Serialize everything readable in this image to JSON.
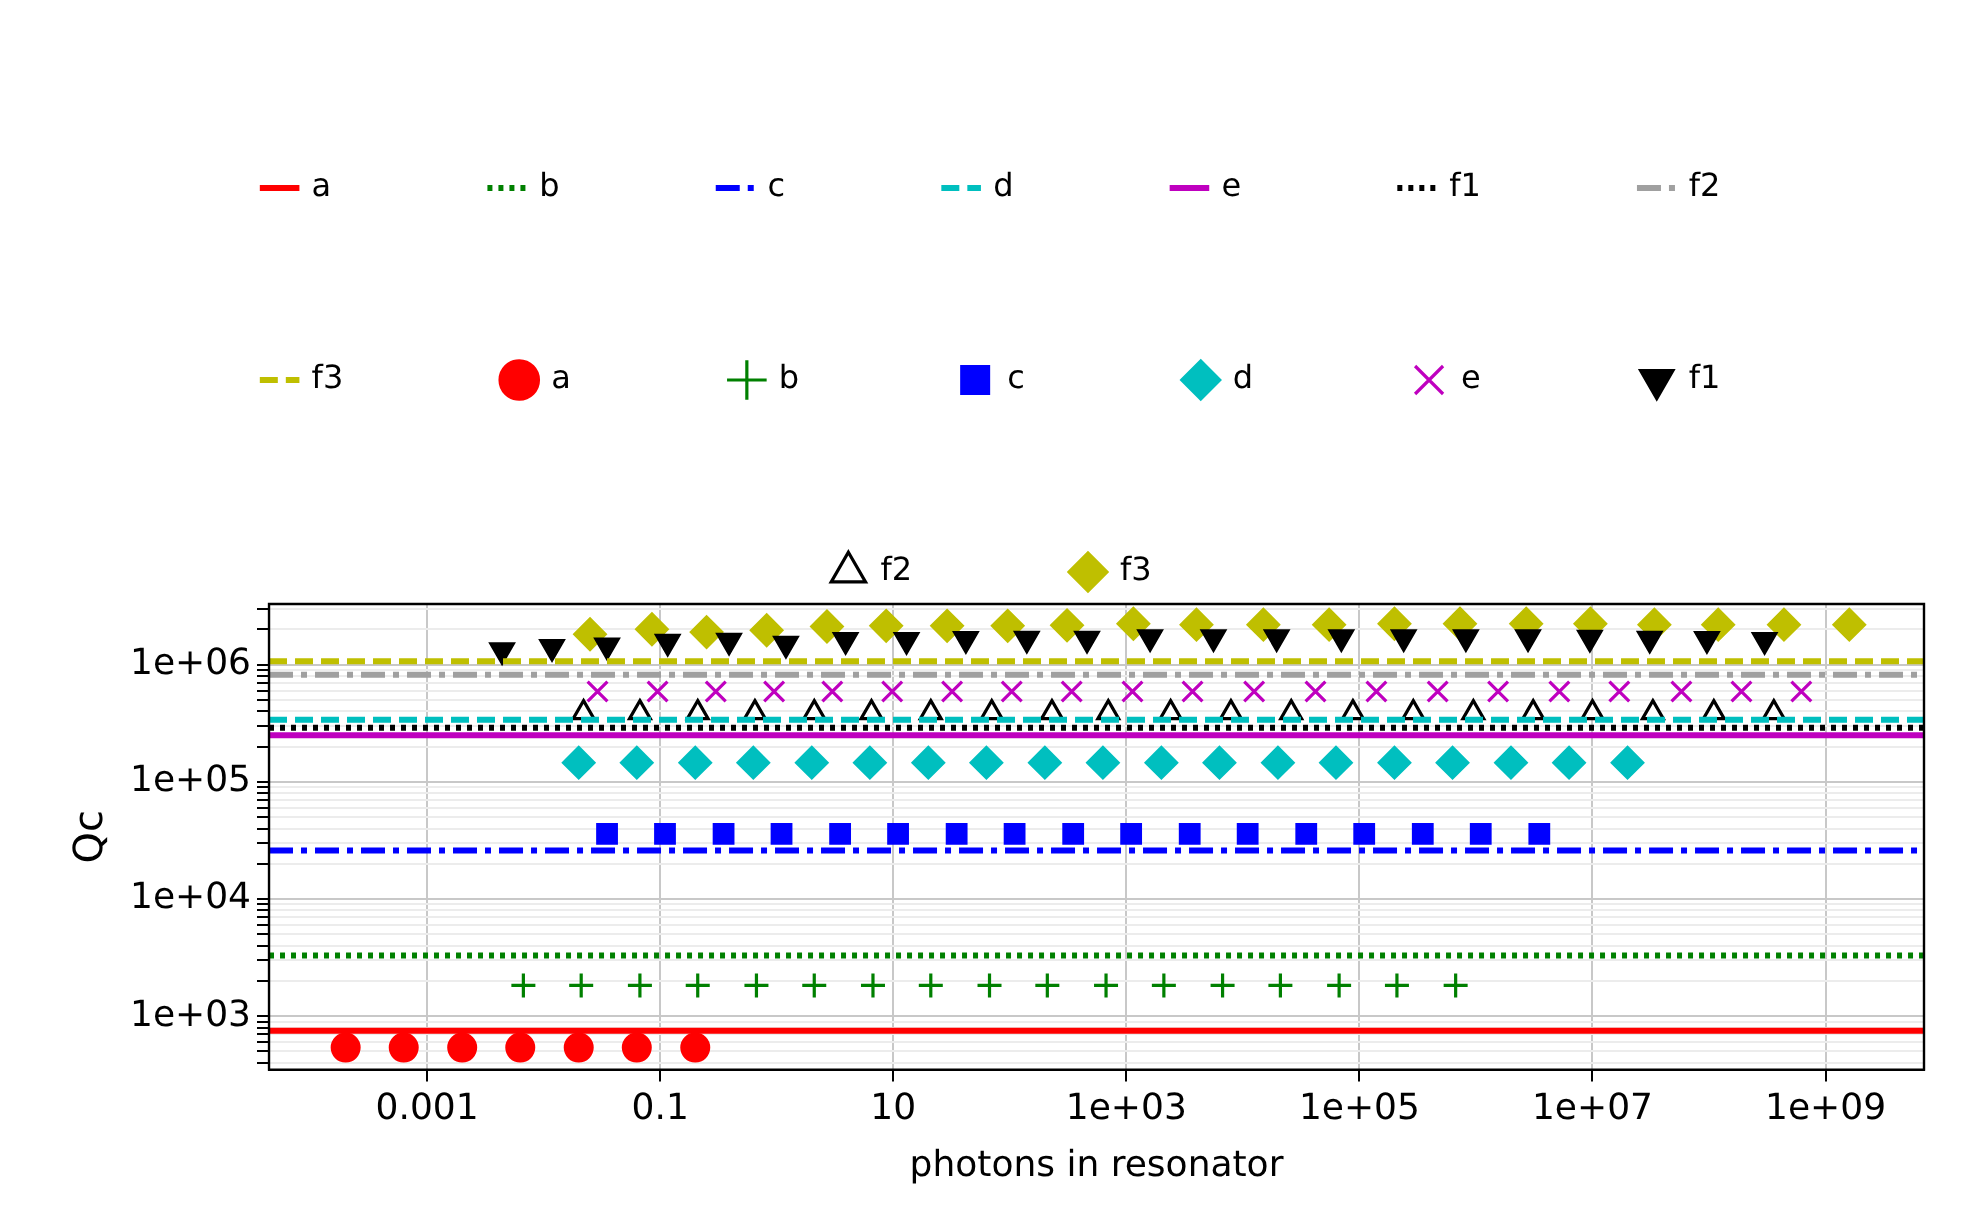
{
  "chart_data": {
    "type": "scatter",
    "xlabel": "photons in resonator",
    "ylabel": "Qc",
    "log": "xy",
    "grid": true,
    "legend": "top",
    "xlim": [
      4.4e-05,
      7000000000.0
    ],
    "ylim": [
      350,
      3300000.0
    ],
    "xticks": [
      {
        "value": 0.001,
        "label": "0.001"
      },
      {
        "value": 0.1,
        "label": "0.1"
      },
      {
        "value": 10,
        "label": "10"
      },
      {
        "value": 1000,
        "label": "1e+03"
      },
      {
        "value": 100000,
        "label": "1e+05"
      },
      {
        "value": 10000000,
        "label": "1e+07"
      },
      {
        "value": 1000000000,
        "label": "1e+09"
      }
    ],
    "yticks": [
      {
        "value": 400,
        "label": null
      },
      {
        "value": 500,
        "label": null
      },
      {
        "value": 600,
        "label": null
      },
      {
        "value": 700,
        "label": null
      },
      {
        "value": 800,
        "label": null
      },
      {
        "value": 900,
        "label": null
      },
      {
        "value": 1000,
        "label": "1e+03"
      },
      {
        "value": 2000,
        "label": null
      },
      {
        "value": 3000,
        "label": null
      },
      {
        "value": 4000,
        "label": null
      },
      {
        "value": 5000,
        "label": null
      },
      {
        "value": 6000,
        "label": null
      },
      {
        "value": 7000,
        "label": null
      },
      {
        "value": 8000,
        "label": null
      },
      {
        "value": 9000,
        "label": null
      },
      {
        "value": 10000,
        "label": "1e+04"
      },
      {
        "value": 20000,
        "label": null
      },
      {
        "value": 30000,
        "label": null
      },
      {
        "value": 40000,
        "label": null
      },
      {
        "value": 50000,
        "label": null
      },
      {
        "value": 60000,
        "label": null
      },
      {
        "value": 70000,
        "label": null
      },
      {
        "value": 80000,
        "label": null
      },
      {
        "value": 90000,
        "label": null
      },
      {
        "value": 100000,
        "label": "1e+05"
      },
      {
        "value": 200000,
        "label": null
      },
      {
        "value": 300000,
        "label": null
      },
      {
        "value": 400000,
        "label": null
      },
      {
        "value": 500000,
        "label": null
      },
      {
        "value": 600000,
        "label": null
      },
      {
        "value": 700000,
        "label": null
      },
      {
        "value": 800000,
        "label": null
      },
      {
        "value": 900000,
        "label": null
      },
      {
        "value": 1000000,
        "label": "1e+06"
      },
      {
        "value": 2000000,
        "label": null
      },
      {
        "value": 3000000,
        "label": null
      }
    ],
    "series": [
      {
        "name": "a",
        "type": "line",
        "line_style": "solid",
        "color": "#ff0000",
        "x": [
          4.4e-05,
          7000000000.0
        ],
        "values": [
          750,
          750
        ]
      },
      {
        "name": "b",
        "type": "line",
        "line_style": "dotted",
        "color": "#008000",
        "x": [
          4.4e-05,
          7000000000.0
        ],
        "values": [
          3300,
          3300
        ]
      },
      {
        "name": "c",
        "type": "line",
        "line_style": "dashdot",
        "color": "#0000ff",
        "x": [
          4.4e-05,
          7000000000.0
        ],
        "values": [
          26000,
          26000
        ]
      },
      {
        "name": "d",
        "type": "line",
        "line_style": "dashed",
        "color": "#00bfbf",
        "x": [
          4.4e-05,
          7000000000.0
        ],
        "values": [
          340000,
          340000
        ]
      },
      {
        "name": "e",
        "type": "line",
        "line_style": "solid",
        "color": "#bf00bf",
        "x": [
          4.4e-05,
          7000000000.0
        ],
        "values": [
          250000,
          250000
        ]
      },
      {
        "name": "f1",
        "type": "line",
        "line_style": "dotted",
        "color": "#000000",
        "x": [
          4.4e-05,
          7000000000.0
        ],
        "values": [
          290000,
          290000
        ]
      },
      {
        "name": "f2",
        "type": "line",
        "line_style": "dashdot",
        "color": "#a0a0a0",
        "x": [
          4.4e-05,
          7000000000.0
        ],
        "values": [
          820000,
          820000
        ]
      },
      {
        "name": "f3",
        "type": "line",
        "line_style": "dashed",
        "color": "#bfbf00",
        "x": [
          4.4e-05,
          7000000000.0
        ],
        "values": [
          1070000,
          1070000
        ]
      },
      {
        "name": "a",
        "marker": "circle",
        "color": "#ff0000",
        "x": [
          0.0002,
          0.00063,
          0.002,
          0.0063,
          0.02,
          0.063,
          0.2
        ],
        "values": [
          540,
          540,
          540,
          540,
          540,
          540,
          540
        ]
      },
      {
        "name": "b",
        "marker": "plus",
        "color": "#008000",
        "x": [
          0.0067,
          0.021,
          0.067,
          0.21,
          0.67,
          2.1,
          6.7,
          21,
          67,
          210,
          670,
          2100,
          6700,
          21000,
          67000,
          210000,
          670000
        ],
        "values": [
          1830,
          1830,
          1830,
          1830,
          1830,
          1830,
          1830,
          1830,
          1830,
          1830,
          1830,
          1830,
          1830,
          1830,
          1830,
          1830,
          1830
        ]
      },
      {
        "name": "c",
        "marker": "square",
        "color": "#0000ff",
        "x": [
          0.035,
          0.11,
          0.35,
          1.1,
          3.5,
          11,
          35,
          110,
          350,
          1100,
          3500,
          11000,
          35000,
          110000,
          350000,
          1100000,
          3500000
        ],
        "values": [
          36000,
          36000,
          36000,
          36000,
          36000,
          36000,
          36000,
          36000,
          36000,
          36000,
          36000,
          36000,
          36000,
          36000,
          36000,
          36000,
          36000
        ]
      },
      {
        "name": "d",
        "marker": "diamond",
        "color": "#00bfbf",
        "x": [
          0.02,
          0.063,
          0.2,
          0.63,
          2,
          6.3,
          20,
          63,
          200,
          630,
          2000,
          6300,
          20000,
          63000,
          200000,
          630000,
          2000000,
          6300000,
          20000000
        ],
        "values": [
          146000,
          146000,
          146000,
          146000,
          146000,
          146000,
          146000,
          146000,
          146000,
          146000,
          146000,
          146000,
          146000,
          146000,
          146000,
          146000,
          146000,
          146000,
          146000
        ]
      },
      {
        "name": "e",
        "marker": "x",
        "color": "#bf00bf",
        "x": [
          0.029,
          0.095,
          0.3,
          0.95,
          3,
          9.8,
          32,
          104,
          340,
          1130,
          3700,
          12500,
          42000,
          140000,
          470000,
          1550000,
          5200000,
          17000000,
          58000000,
          190000000,
          620000000
        ],
        "values": [
          590000,
          590000,
          590000,
          590000,
          590000,
          590000,
          590000,
          590000,
          590000,
          590000,
          590000,
          590000,
          590000,
          590000,
          590000,
          590000,
          590000,
          590000,
          590000,
          590000,
          590000
        ]
      },
      {
        "name": "f1",
        "marker": "triangle_down",
        "color": "#000000",
        "x": [
          0.0044,
          0.0118,
          0.035,
          0.116,
          0.39,
          1.2,
          3.9,
          13,
          42,
          140,
          460,
          1600,
          5600,
          19500,
          70000,
          240000,
          820000,
          2800000,
          9500000,
          31000000,
          96000000,
          300000000
        ],
        "values": [
          1330000,
          1420000,
          1460000,
          1570000,
          1600000,
          1510000,
          1630000,
          1630000,
          1660000,
          1670000,
          1670000,
          1720000,
          1720000,
          1720000,
          1720000,
          1720000,
          1720000,
          1720000,
          1700000,
          1670000,
          1660000,
          1630000
        ]
      },
      {
        "name": "f2",
        "marker": "triangle_open",
        "color": "#000000",
        "x": [
          0.022,
          0.067,
          0.21,
          0.65,
          2.1,
          6.5,
          21,
          70,
          230,
          700,
          2400,
          7900,
          26000,
          88000,
          290000,
          950000,
          3100000,
          10000000,
          33000000,
          110000000,
          360000000
        ],
        "values": [
          390000,
          390000,
          390000,
          390000,
          390000,
          390000,
          390000,
          390000,
          390000,
          390000,
          390000,
          390000,
          390000,
          390000,
          390000,
          390000,
          390000,
          390000,
          390000,
          390000,
          390000
        ]
      },
      {
        "name": "f3",
        "marker": "diamond",
        "color": "#bfbf00",
        "x": [
          0.025,
          0.085,
          0.25,
          0.82,
          2.7,
          8.7,
          29,
          96,
          310,
          1150,
          4000,
          15000,
          55000,
          200000,
          730000,
          2700000,
          9600000,
          34000000,
          120000000,
          440000000,
          1600000000
        ],
        "values": [
          1820000,
          2010000,
          1900000,
          1970000,
          2120000,
          2150000,
          2150000,
          2150000,
          2170000,
          2240000,
          2200000,
          2200000,
          2200000,
          2240000,
          2240000,
          2240000,
          2240000,
          2200000,
          2200000,
          2200000,
          2200000
        ]
      }
    ]
  }
}
